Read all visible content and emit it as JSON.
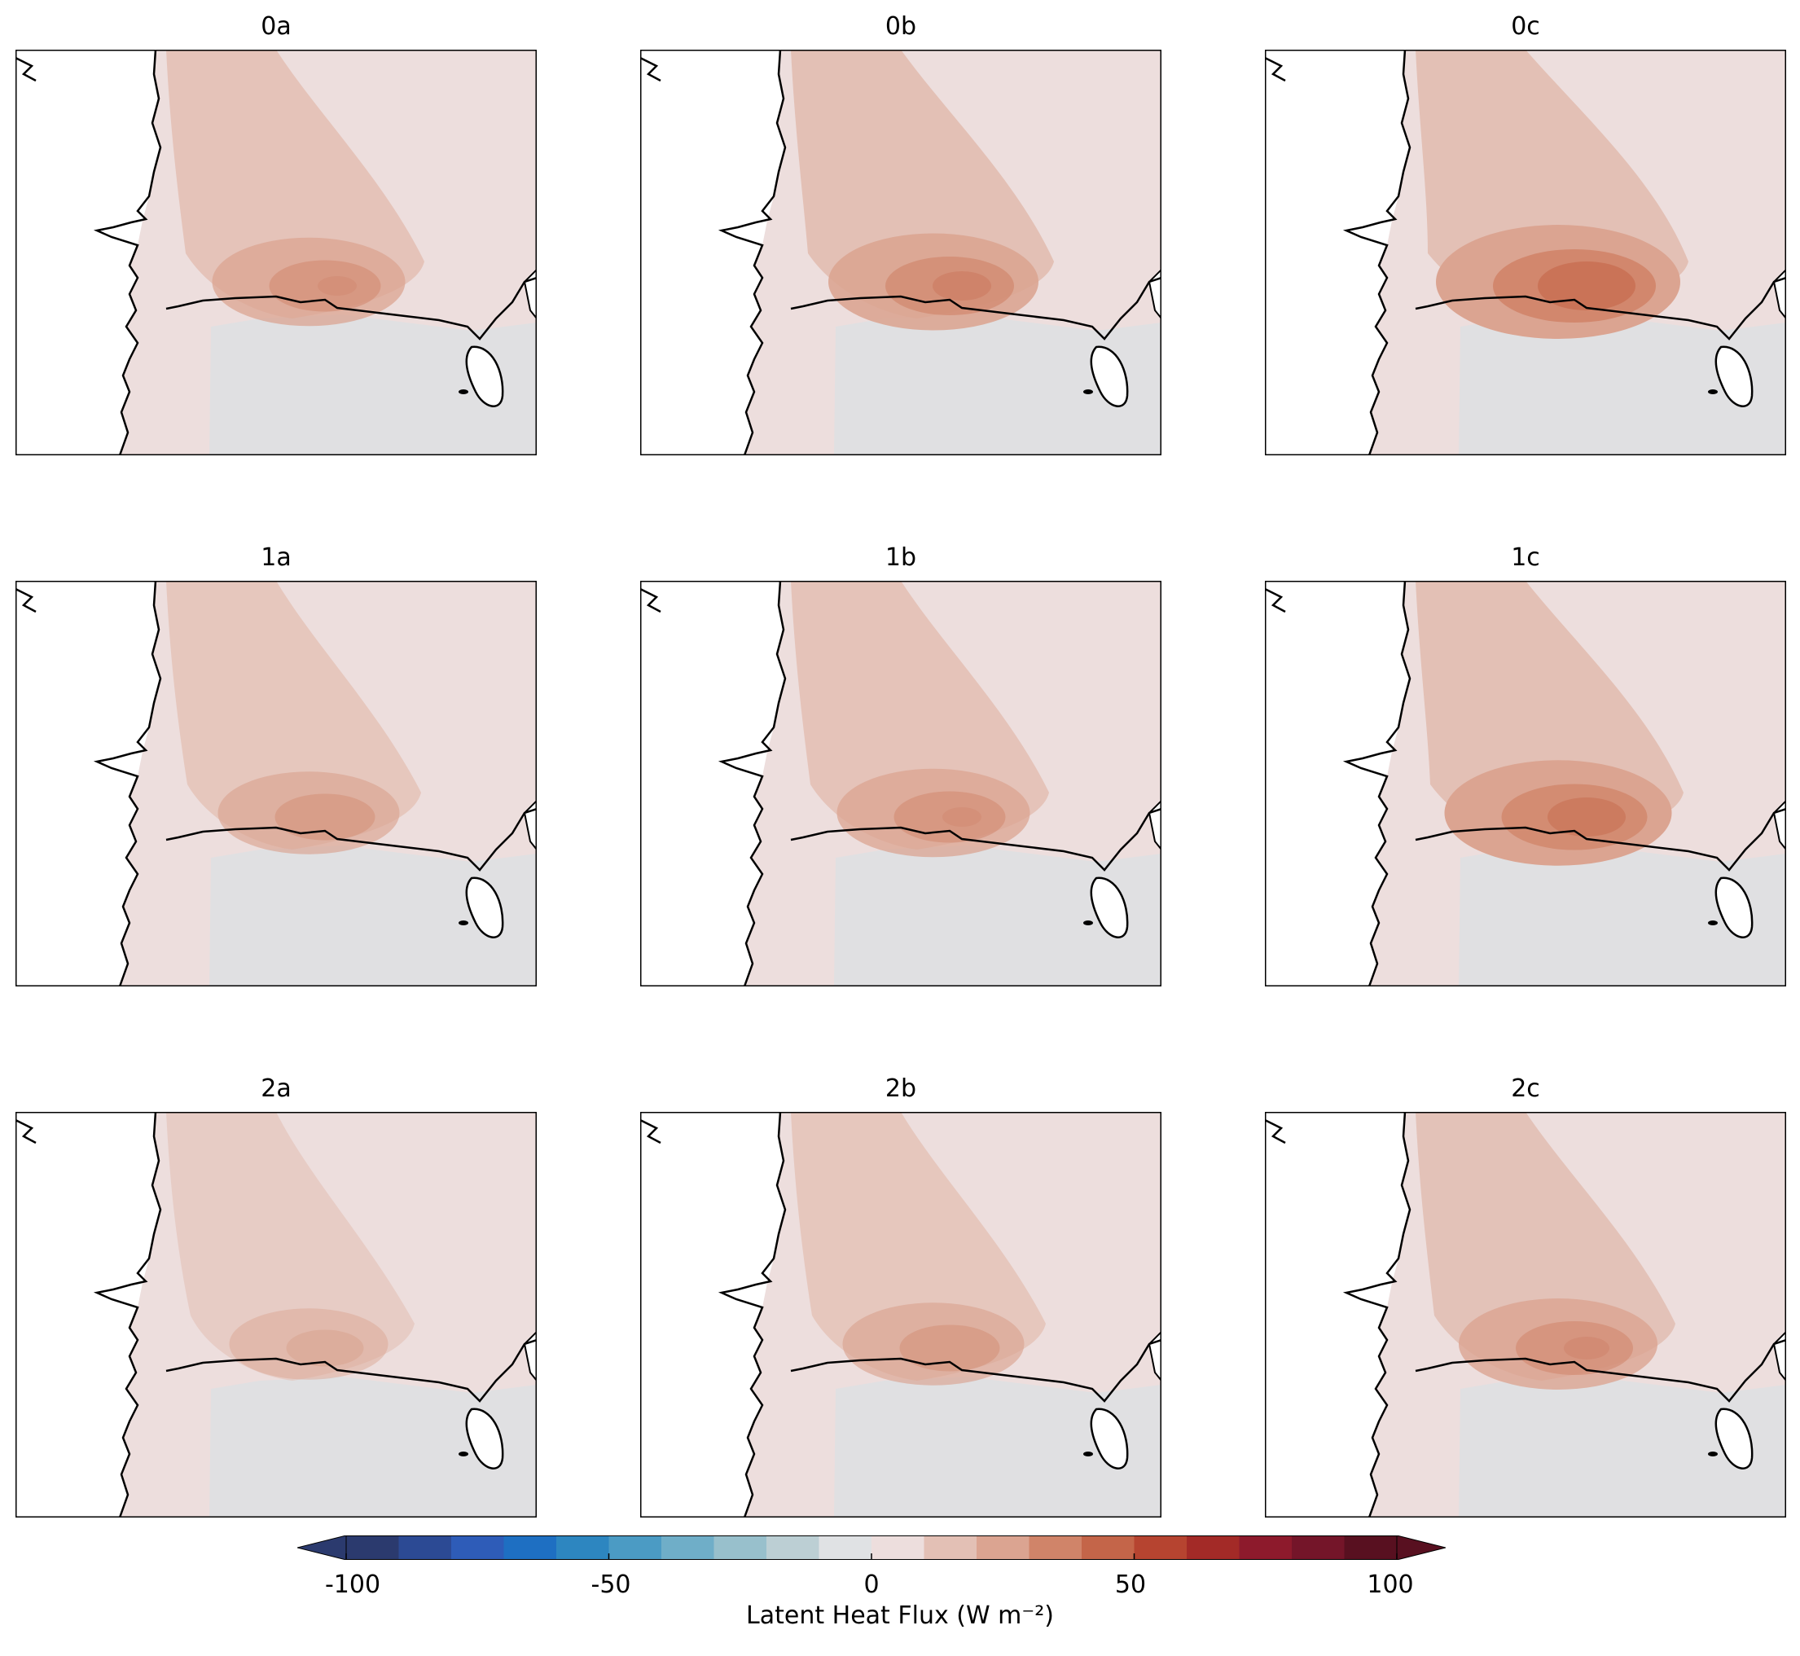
{
  "panels": [
    {
      "title": "0a",
      "intensity": 0.55
    },
    {
      "title": "0b",
      "intensity": 0.7
    },
    {
      "title": "0c",
      "intensity": 1.0
    },
    {
      "title": "1a",
      "intensity": 0.45
    },
    {
      "title": "1b",
      "intensity": 0.55
    },
    {
      "title": "1c",
      "intensity": 0.85
    },
    {
      "title": "2a",
      "intensity": 0.25
    },
    {
      "title": "2b",
      "intensity": 0.45
    },
    {
      "title": "2c",
      "intensity": 0.6
    }
  ],
  "colorbar": {
    "label": "Latent Heat Flux (W m⁻²)",
    "tick_labels": [
      "-100",
      "-50",
      "0",
      "50",
      "100"
    ],
    "range": [
      -100,
      100
    ],
    "colors": [
      "#2b3a6e",
      "#2c4a94",
      "#2e5cb8",
      "#1e6fc2",
      "#2d86c0",
      "#4b9bc4",
      "#6faec8",
      "#98c0cc",
      "#bccfd4",
      "#e0e2e4",
      "#eddedd",
      "#e3c0b5",
      "#dba491",
      "#d08469",
      "#c46549",
      "#b64430",
      "#a32a27",
      "#8d1a2c",
      "#741529",
      "#581020"
    ],
    "ocean_color": "#e0e0e2",
    "land_color": "#ffffff"
  }
}
